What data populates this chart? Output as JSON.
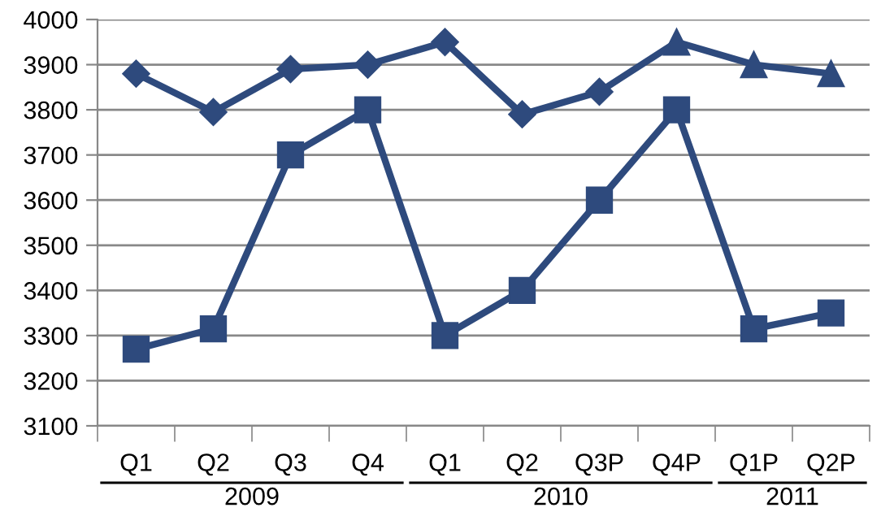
{
  "chart_data": {
    "type": "line",
    "categories": [
      "Q1",
      "Q2",
      "Q3",
      "Q4",
      "Q1",
      "Q2",
      "Q3P",
      "Q4P",
      "Q1P",
      "Q2P"
    ],
    "series": [
      {
        "color": "#2e4a7d",
        "marker": "diamond",
        "values": [
          3880,
          3795,
          3890,
          3900,
          3950,
          3790,
          3840,
          3950,
          null,
          null
        ]
      },
      {
        "color": "#2e4a7d",
        "marker": "triangle",
        "values": [
          null,
          null,
          null,
          null,
          null,
          null,
          null,
          3950,
          3900,
          3880
        ]
      },
      {
        "color": "#2e4a7d",
        "marker": "square",
        "values": [
          3270,
          3315,
          3700,
          3800,
          3300,
          3400,
          3600,
          3800,
          3315,
          3350
        ]
      }
    ],
    "annotations": [
      "2009",
      "2010",
      "2011"
    ],
    "ylim": [
      3100,
      4000
    ],
    "yticks": [
      3100,
      3200,
      3300,
      3400,
      3500,
      3600,
      3700,
      3800,
      3900,
      4000
    ],
    "grid": "y"
  }
}
